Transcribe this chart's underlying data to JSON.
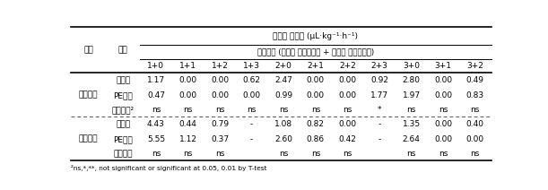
{
  "title_line1": "에틸레 발생량 (μL·kg⁻¹·h⁻¹)",
  "title_line2": "저장기간 (탈삽전 저장개월수 + 탈삽후 저장개월수)",
  "col_headers": [
    "1+0",
    "1+1",
    "1+2",
    "1+3",
    "2+0",
    "2+1",
    "2+2",
    "2+3",
    "3+0",
    "3+1",
    "3+2"
  ],
  "pum_jong_header": "품종",
  "cheo_ri_header": "처리",
  "group1_name": "상주둥시",
  "group2_name": "도근조생",
  "row_labels": [
    "무처리",
    "PE필름",
    "유의수준²",
    "무처리",
    "PE필름",
    "유의수준"
  ],
  "data": [
    [
      "1.17",
      "0.00",
      "0.00",
      "0.62",
      "2.47",
      "0.00",
      "0.00",
      "0.92",
      "2.80",
      "0.00",
      "0.49"
    ],
    [
      "0.47",
      "0.00",
      "0.00",
      "0.00",
      "0.99",
      "0.00",
      "0.00",
      "1.77",
      "1.97",
      "0.00",
      "0.83"
    ],
    [
      "ns",
      "ns",
      "ns",
      "ns",
      "ns",
      "ns",
      "ns",
      "*",
      "ns",
      "ns",
      "ns"
    ],
    [
      "4.43",
      "0.44",
      "0.79",
      "-",
      "1.08",
      "0.82",
      "0.00",
      "-",
      "1.35",
      "0.00",
      "0.40"
    ],
    [
      "5.55",
      "1.12",
      "0.37",
      "-",
      "2.60",
      "0.86",
      "0.42",
      "-",
      "2.64",
      "0.00",
      "0.00"
    ],
    [
      "ns",
      "ns",
      "ns",
      "",
      "ns",
      "ns",
      "ns",
      "",
      "ns",
      "ns",
      "ns"
    ]
  ],
  "footnote": "²ns,*,**, not significant or significant at 0.05, 0.01 by T-test"
}
